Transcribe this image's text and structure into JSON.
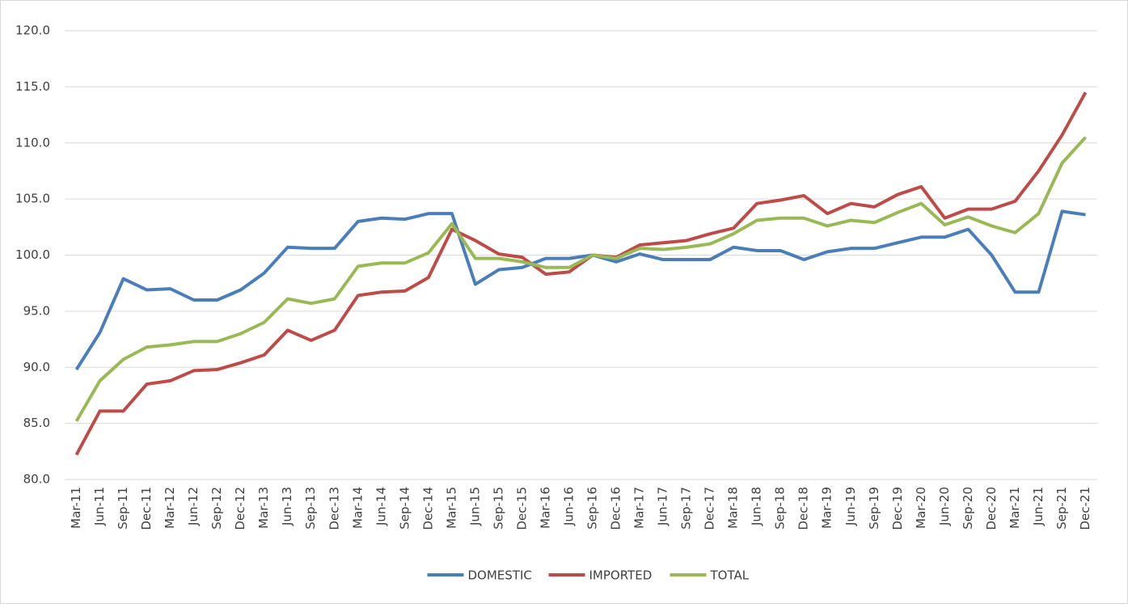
{
  "chart_data": {
    "type": "line",
    "categories": [
      "Mar-11",
      "Jun-11",
      "Sep-11",
      "Dec-11",
      "Mar-12",
      "Jun-12",
      "Sep-12",
      "Dec-12",
      "Mar-13",
      "Jun-13",
      "Sep-13",
      "Dec-13",
      "Mar-14",
      "Jun-14",
      "Sep-14",
      "Dec-14",
      "Mar-15",
      "Jun-15",
      "Sep-15",
      "Dec-15",
      "Mar-16",
      "Jun-16",
      "Sep-16",
      "Dec-16",
      "Mar-17",
      "Jun-17",
      "Sep-17",
      "Dec-17",
      "Mar-18",
      "Jun-18",
      "Sep-18",
      "Dec-18",
      "Mar-19",
      "Jun-19",
      "Sep-19",
      "Dec-19",
      "Mar-20",
      "Jun-20",
      "Sep-20",
      "Dec-20",
      "Mar-21",
      "Jun-21",
      "Sep-21",
      "Dec-21"
    ],
    "series": [
      {
        "name": "DOMESTIC",
        "color": "#4a7ebb",
        "values": [
          89.8,
          93.1,
          97.9,
          96.9,
          97.0,
          96.0,
          96.0,
          96.9,
          98.4,
          100.7,
          100.6,
          100.6,
          103.0,
          103.3,
          103.2,
          103.7,
          103.7,
          97.4,
          98.7,
          98.9,
          99.7,
          99.7,
          100.0,
          99.4,
          100.1,
          99.6,
          99.6,
          99.6,
          100.7,
          100.4,
          100.4,
          99.6,
          100.3,
          100.6,
          100.6,
          101.1,
          101.6,
          101.6,
          102.3,
          100.0,
          96.7,
          96.7,
          103.9,
          103.6
        ]
      },
      {
        "name": "IMPORTED",
        "color": "#be4b48",
        "values": [
          82.2,
          86.1,
          86.1,
          88.5,
          88.8,
          89.7,
          89.8,
          90.4,
          91.1,
          93.3,
          92.4,
          93.3,
          96.4,
          96.7,
          96.8,
          98.0,
          102.3,
          101.3,
          100.1,
          99.8,
          98.3,
          98.5,
          100.0,
          99.8,
          100.9,
          101.1,
          101.3,
          101.9,
          102.4,
          104.6,
          104.9,
          105.3,
          103.7,
          104.6,
          104.3,
          105.4,
          106.1,
          103.3,
          104.1,
          104.1,
          104.8,
          107.5,
          110.7,
          114.5
        ]
      },
      {
        "name": "TOTAL",
        "color": "#98b954",
        "values": [
          85.2,
          88.8,
          90.7,
          91.8,
          92.0,
          92.3,
          92.3,
          93.0,
          94.0,
          96.1,
          95.7,
          96.1,
          99.0,
          99.3,
          99.3,
          100.2,
          102.8,
          99.7,
          99.7,
          99.4,
          98.9,
          98.9,
          100.0,
          99.7,
          100.6,
          100.5,
          100.7,
          101.0,
          101.9,
          103.1,
          103.3,
          103.3,
          102.6,
          103.1,
          102.9,
          103.8,
          104.6,
          102.7,
          103.4,
          102.6,
          102.0,
          103.7,
          108.2,
          110.5
        ]
      }
    ],
    "ylim": [
      80,
      120
    ],
    "yticks": [
      {
        "value": 80,
        "label": "80.0"
      },
      {
        "value": 85,
        "label": "85.0"
      },
      {
        "value": 90,
        "label": "90.0"
      },
      {
        "value": 95,
        "label": "95.0"
      },
      {
        "value": 100,
        "label": "100.0"
      },
      {
        "value": 105,
        "label": "105.0"
      },
      {
        "value": 110,
        "label": "110.0"
      },
      {
        "value": 115,
        "label": "115.0"
      },
      {
        "value": 120,
        "label": "120.0"
      }
    ],
    "grid": true,
    "legend": "bottom"
  }
}
